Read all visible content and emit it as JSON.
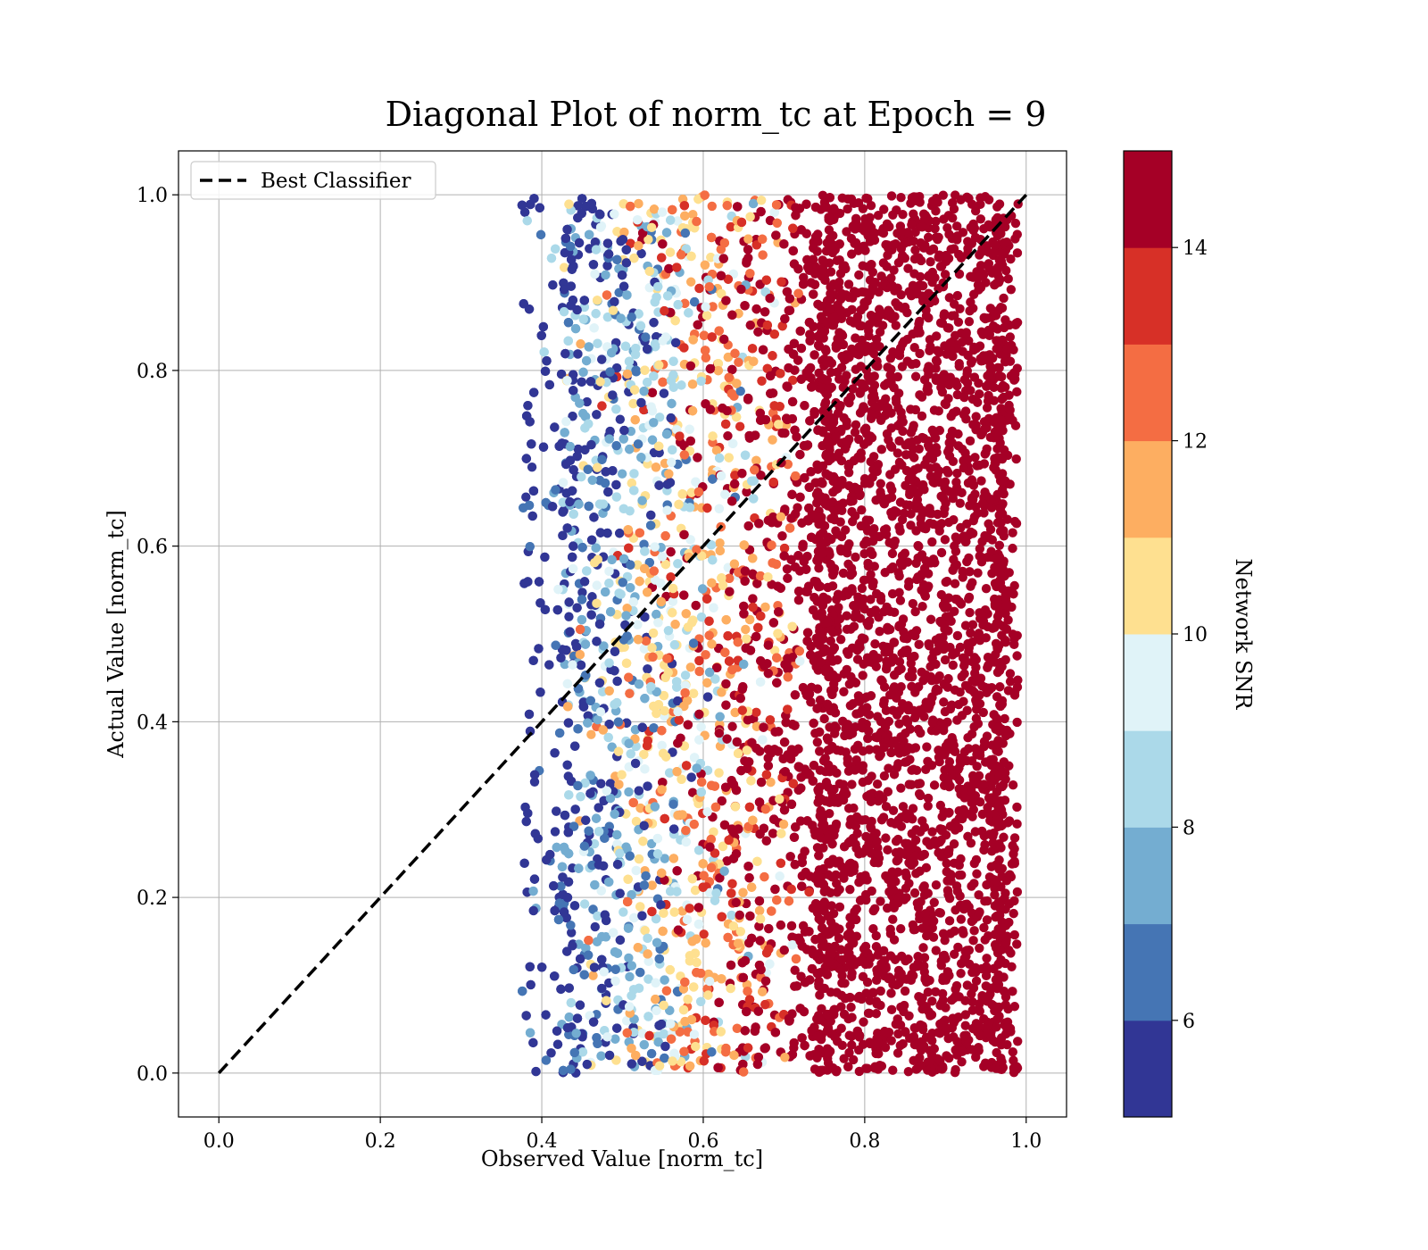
{
  "chart_data": {
    "type": "scatter",
    "title": "Diagonal Plot of norm_tc at Epoch = 9",
    "xlabel": "Observed Value [norm_tc]",
    "ylabel": "Actual Value [norm_tc]",
    "xlim": [
      -0.05,
      1.05
    ],
    "ylim": [
      -0.05,
      1.05
    ],
    "xticks": [
      "0.0",
      "0.2",
      "0.4",
      "0.6",
      "0.8",
      "1.0"
    ],
    "xtick_values": [
      0.0,
      0.2,
      0.4,
      0.6,
      0.8,
      1.0
    ],
    "yticks": [
      "0.0",
      "0.2",
      "0.4",
      "0.6",
      "0.8",
      "1.0"
    ],
    "ytick_values": [
      0.0,
      0.2,
      0.4,
      0.6,
      0.8,
      1.0
    ],
    "grid": true,
    "legend": {
      "placement": "upper-left",
      "entries": [
        "Best Classifier"
      ]
    },
    "reference_line": {
      "name": "Best Classifier",
      "style": "dashed",
      "color": "#000000",
      "x": [
        0.0,
        1.0
      ],
      "y": [
        0.0,
        1.0
      ]
    },
    "scatter": {
      "x_range_observed": [
        0.375,
        0.99
      ],
      "y_range_actual": [
        0.0,
        1.0
      ],
      "trend": "Network SNR increases with observed value; points below ~0.45 are low SNR (dark blue), points above ~0.72 are high SNR (dark red)"
    },
    "colorbar": {
      "label": "Network SNR",
      "vmin": 5,
      "vmax": 15,
      "tick_labels": [
        "6",
        "8",
        "10",
        "12",
        "14"
      ],
      "tick_values": [
        6,
        8,
        10,
        12,
        14
      ],
      "levels": 10,
      "colors": [
        "#313695",
        "#4575b4",
        "#74add1",
        "#abd9e9",
        "#e0f3f8",
        "#fee090",
        "#fdae61",
        "#f46d43",
        "#d73027",
        "#a50026"
      ]
    }
  }
}
